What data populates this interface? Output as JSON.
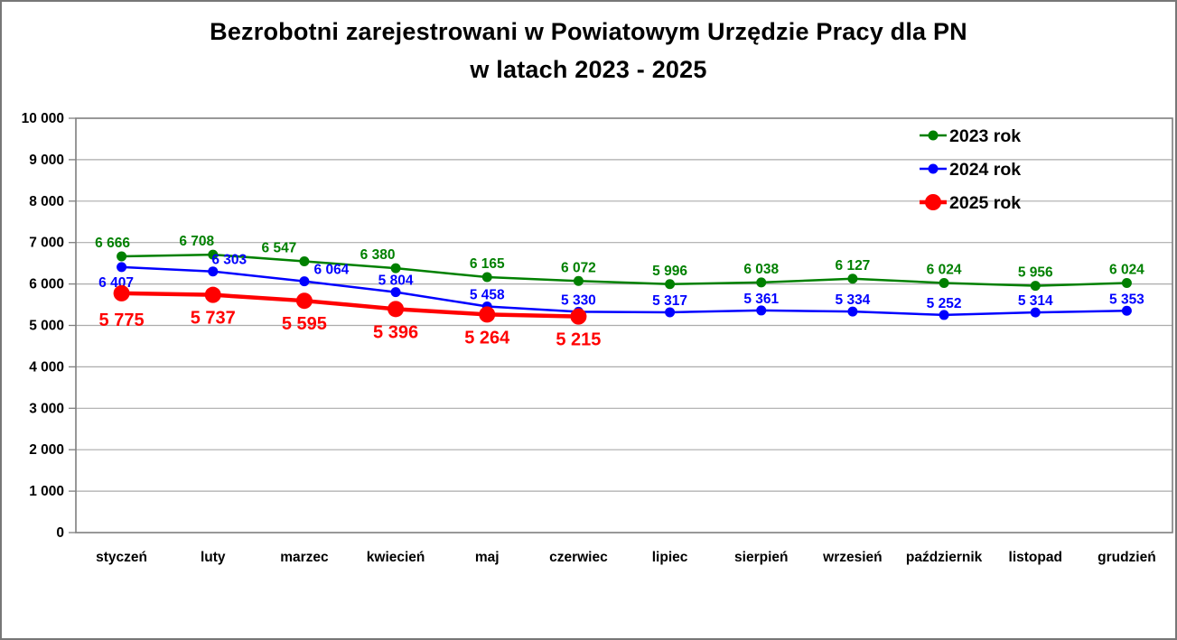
{
  "title": {
    "line1": "Bezrobotni zarejestrowani w Powiatowym Urzędzie Pracy dla PN",
    "line2": "w latach 2023 - 2025"
  },
  "chart_data": {
    "type": "line",
    "title": "Bezrobotni zarejestrowani w Powiatowym Urzędzie Pracy dla PN w latach 2023 - 2025",
    "categories": [
      "styczeń",
      "luty",
      "marzec",
      "kwiecień",
      "maj",
      "czerwiec",
      "lipiec",
      "sierpień",
      "wrzesień",
      "październik",
      "listopad",
      "grudzień"
    ],
    "series": [
      {
        "name": "2023 rok",
        "color": "#008000",
        "values": [
          6666,
          6708,
          6547,
          6380,
          6165,
          6072,
          5996,
          6038,
          6127,
          6024,
          5956,
          6024
        ],
        "marker_radius": 5.5,
        "line_width": 2.5,
        "label_size": 15.5,
        "label_dy": -10,
        "label_overrides": {
          "0": {
            "dx": -10
          },
          "1": {
            "dx": -18
          },
          "2": {
            "dx": -28
          },
          "3": {
            "dx": -20
          }
        }
      },
      {
        "name": "2024 rok",
        "color": "#0000ff",
        "values": [
          6407,
          6303,
          6064,
          5804,
          5458,
          5330,
          5317,
          5361,
          5334,
          5252,
          5314,
          5353
        ],
        "marker_radius": 5.5,
        "line_width": 2.5,
        "label_size": 15.5,
        "label_dy": -8,
        "label_overrides": {
          "0": {
            "dx": -6,
            "dy": 22
          },
          "1": {
            "dx": 18
          },
          "2": {
            "dx": 30
          }
        }
      },
      {
        "name": "2025 rok",
        "color": "#ff0000",
        "values": [
          5775,
          5737,
          5595,
          5396,
          5264,
          5215
        ],
        "marker_radius": 9,
        "line_width": 4.5,
        "label_size": 20,
        "label_dy": 32,
        "label_overrides": {
          "0": {
            "dy": 36
          }
        }
      }
    ],
    "ylim": [
      0,
      10000
    ],
    "ytick_step": 1000,
    "ytick_labels": [
      "0",
      "1 000",
      "2 000",
      "3 000",
      "4 000",
      "5 000",
      "6 000",
      "7 000",
      "8 000",
      "9 000",
      "10 000"
    ],
    "grid": true,
    "legend_position": "top-right",
    "number_format": "space-thousands",
    "colors": {
      "grid": "#ababab",
      "plot_border": "#7f7f7f",
      "axis_text": "#000000"
    }
  }
}
